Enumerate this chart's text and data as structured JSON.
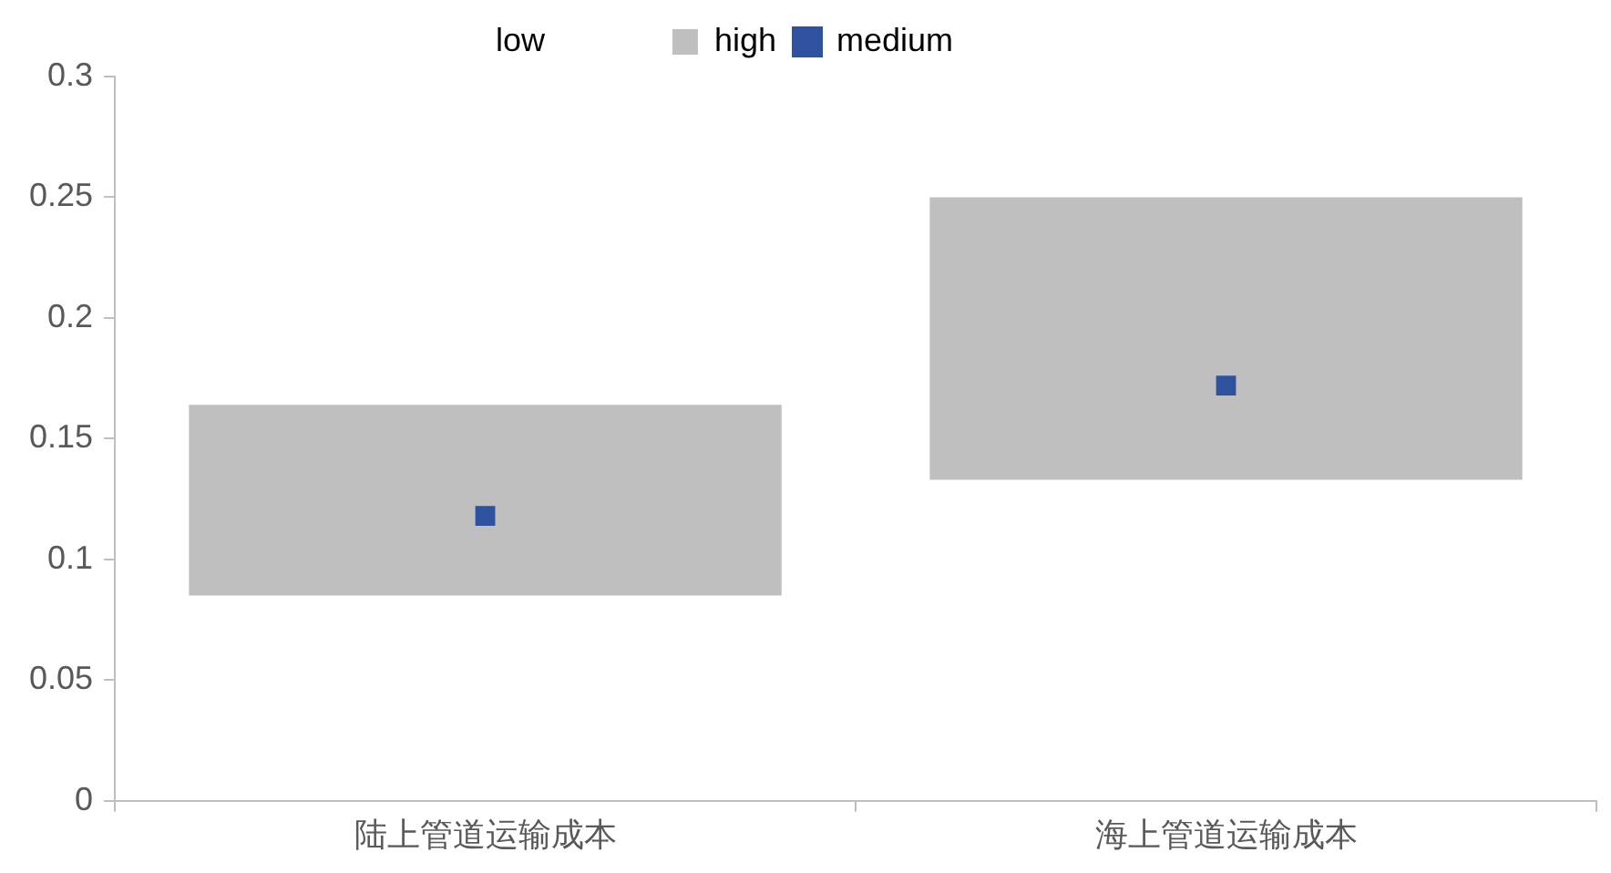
{
  "chart_data": {
    "type": "bar",
    "categories": [
      "陆上管道运输成本",
      "海上管道运输成本"
    ],
    "annotations": [
      "low"
    ],
    "series": [
      {
        "name": "high",
        "color": "#bfbfbf",
        "base": [
          0.085,
          0.133
        ],
        "values": [
          0.079,
          0.117
        ]
      },
      {
        "name": "medium",
        "type": "scatter",
        "marker": "square",
        "color": "#2f52a0",
        "x": [
          "陆上管道运输成本",
          "海上管道运输成本"
        ],
        "values": [
          0.118,
          0.172
        ]
      }
    ],
    "ylim": [
      0,
      0.3
    ],
    "yticks": [
      0,
      0.05,
      0.1,
      0.15,
      0.2,
      0.25,
      0.3
    ],
    "grid": false,
    "legend": "top"
  }
}
